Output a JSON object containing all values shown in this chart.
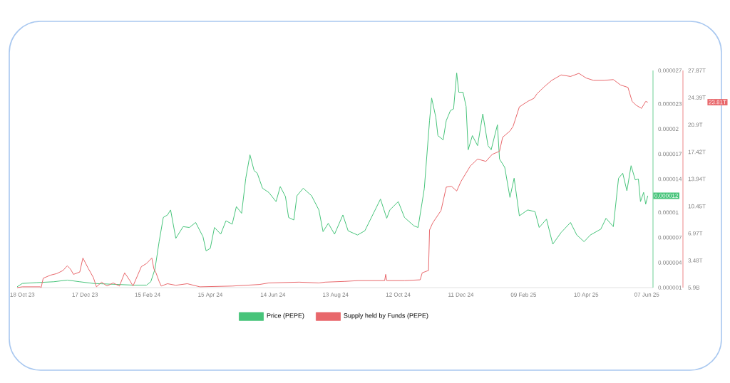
{
  "chart_data": {
    "type": "line",
    "xlim": [
      "2023-10-13",
      "2025-06-13"
    ],
    "xticks": [
      {
        "value": "2023-10-18",
        "label": "18 Oct 23"
      },
      {
        "value": "2023-12-17",
        "label": "17 Dec 23"
      },
      {
        "value": "2024-02-15",
        "label": "15 Feb 24"
      },
      {
        "value": "2024-04-15",
        "label": "15 Apr 24"
      },
      {
        "value": "2024-06-14",
        "label": "14 Jun 24"
      },
      {
        "value": "2024-08-13",
        "label": "13 Aug 24"
      },
      {
        "value": "2024-10-12",
        "label": "12 Oct 24"
      },
      {
        "value": "2024-12-11",
        "label": "11 Dec 24"
      },
      {
        "value": "2025-02-09",
        "label": "09 Feb 25"
      },
      {
        "value": "2025-04-10",
        "label": "10 Apr 25"
      },
      {
        "value": "2025-06-07",
        "label": "07 Jun 25"
      }
    ],
    "ylim": [
      1e-06,
      2.7e-05
    ],
    "yticks": [
      {
        "value": 1e-06,
        "label": "0.000001"
      },
      {
        "value": 4e-06,
        "label": "0.000004"
      },
      {
        "value": 7e-06,
        "label": "0.000007"
      },
      {
        "value": 1e-05,
        "label": "0.00001"
      },
      {
        "value": 1.4e-05,
        "label": "0.000014"
      },
      {
        "value": 1.7e-05,
        "label": "0.000017"
      },
      {
        "value": 2e-05,
        "label": "0.00002"
      },
      {
        "value": 2.3e-05,
        "label": "0.000023"
      },
      {
        "value": 2.7e-05,
        "label": "0.000027"
      }
    ],
    "y2lim": [
      0,
      27870000000000.0
    ],
    "y2ticks": [
      {
        "value": 5900000000.0,
        "label": "5.9B"
      },
      {
        "value": 3480000000000.0,
        "label": "3.48T"
      },
      {
        "value": 6970000000000.0,
        "label": "6.97T"
      },
      {
        "value": 10450000000000.0,
        "label": "10.45T"
      },
      {
        "value": 13940000000000.0,
        "label": "13.94T"
      },
      {
        "value": 17420000000000.0,
        "label": "17.42T"
      },
      {
        "value": 20900000000000.0,
        "label": "20.9T"
      },
      {
        "value": 24390000000000.0,
        "label": "24.39T"
      },
      {
        "value": 27870000000000.0,
        "label": "27.87T"
      }
    ],
    "legend": "bottom",
    "annotations": [
      "0.000012",
      "23.81T"
    ],
    "series": [
      {
        "name": "Price (PEPE)",
        "color": "#47c47a",
        "x": [
          "2023-10-13",
          "2023-10-18",
          "2023-11-01",
          "2023-11-17",
          "2023-11-30",
          "2023-12-12",
          "2023-12-25",
          "2024-01-13",
          "2024-02-01",
          "2024-02-14",
          "2024-02-18",
          "2024-02-22",
          "2024-02-26",
          "2024-03-01",
          "2024-03-05",
          "2024-03-08",
          "2024-03-13",
          "2024-03-20",
          "2024-03-26",
          "2024-04-01",
          "2024-04-08",
          "2024-04-11",
          "2024-04-15",
          "2024-04-19",
          "2024-04-25",
          "2024-04-30",
          "2024-05-06",
          "2024-05-10",
          "2024-05-15",
          "2024-05-19",
          "2024-05-23",
          "2024-05-27",
          "2024-05-30",
          "2024-06-04",
          "2024-06-10",
          "2024-06-17",
          "2024-06-21",
          "2024-06-26",
          "2024-06-29",
          "2024-07-04",
          "2024-07-07",
          "2024-07-13",
          "2024-07-21",
          "2024-07-28",
          "2024-08-01",
          "2024-08-06",
          "2024-08-12",
          "2024-08-20",
          "2024-08-25",
          "2024-09-03",
          "2024-09-10",
          "2024-09-25",
          "2024-10-01",
          "2024-10-04",
          "2024-10-12",
          "2024-10-18",
          "2024-10-27",
          "2024-10-31",
          "2024-11-04",
          "2024-11-06",
          "2024-11-11",
          "2024-11-13",
          "2024-11-17",
          "2024-11-19",
          "2024-11-24",
          "2024-11-27",
          "2024-12-01",
          "2024-12-04",
          "2024-12-07",
          "2024-12-09",
          "2024-12-13",
          "2024-12-16",
          "2024-12-18",
          "2024-12-22",
          "2024-12-27",
          "2025-01-01",
          "2025-01-06",
          "2025-01-09",
          "2025-01-15",
          "2025-01-17",
          "2025-01-22",
          "2025-01-27",
          "2025-01-31",
          "2025-02-05",
          "2025-02-13",
          "2025-02-20",
          "2025-02-24",
          "2025-03-03",
          "2025-03-09",
          "2025-03-17",
          "2025-03-26",
          "2025-04-01",
          "2025-04-08",
          "2025-04-14",
          "2025-04-24",
          "2025-04-29",
          "2025-05-06",
          "2025-05-11",
          "2025-05-15",
          "2025-05-19",
          "2025-05-23",
          "2025-05-27",
          "2025-05-30",
          "2025-06-01",
          "2025-06-04",
          "2025-06-06",
          "2025-06-08"
        ],
        "values": [
          1.1e-06,
          1.5e-06,
          1.6e-06,
          1.7e-06,
          1.9e-06,
          1.7e-06,
          1.5e-06,
          1.4e-06,
          1.3e-06,
          1.3e-06,
          1.7e-06,
          3.2e-06,
          6.5e-06,
          9.4e-06,
          9.7e-06,
          1.03e-05,
          6.9e-06,
          8.3e-06,
          8.2e-06,
          8.8e-06,
          7.1e-06,
          5.4e-06,
          5.7e-06,
          8.2e-06,
          7.4e-06,
          9e-06,
          8.6e-06,
          1.07e-05,
          9.9e-06,
          1.41e-05,
          1.69e-05,
          1.5e-05,
          1.47e-05,
          1.29e-05,
          1.24e-05,
          1.13e-05,
          1.31e-05,
          1.19e-05,
          9.4e-06,
          9.1e-06,
          1.2e-05,
          1.29e-05,
          1.2e-05,
          1.03e-05,
          7.7e-06,
          8.7e-06,
          7.4e-06,
          9.7e-06,
          7.8e-06,
          7.3e-06,
          7.8e-06,
          1.16e-05,
          9.3e-06,
          1.03e-05,
          1.13e-05,
          9.4e-06,
          8.4e-06,
          8.2e-06,
          1.13e-05,
          1.29e-05,
          2.1e-05,
          2.37e-05,
          2.14e-05,
          1.92e-05,
          1.87e-05,
          2.1e-05,
          2.22e-05,
          2.24e-05,
          2.67e-05,
          2.44e-05,
          2.44e-05,
          2.27e-05,
          1.75e-05,
          1.92e-05,
          1.8e-05,
          2.18e-05,
          1.8e-05,
          1.75e-05,
          2.05e-05,
          1.64e-05,
          1.54e-05,
          1.18e-05,
          1.41e-05,
          9.6e-06,
          1.03e-05,
          1.01e-05,
          8.2e-06,
          9.2e-06,
          6.2e-06,
          7.6e-06,
          8.8e-06,
          7.3e-06,
          6.5e-06,
          7.3e-06,
          8e-06,
          9.3e-06,
          8.3e-06,
          1.41e-05,
          1.47e-05,
          1.26e-05,
          1.56e-05,
          1.39e-05,
          1.4e-05,
          1.13e-05,
          1.24e-05,
          1.1e-05,
          1.2e-05
        ]
      },
      {
        "name": "Supply held by Funds (PEPE)",
        "color": "#e8676b",
        "axis": "y2",
        "x": [
          "2023-10-13",
          "2023-10-18",
          "2023-11-04",
          "2023-11-05",
          "2023-11-07",
          "2023-11-14",
          "2023-11-20",
          "2023-11-26",
          "2023-11-30",
          "2023-12-03",
          "2023-12-06",
          "2023-12-12",
          "2023-12-15",
          "2023-12-20",
          "2023-12-25",
          "2023-12-28",
          "2024-01-02",
          "2024-01-07",
          "2024-01-13",
          "2024-01-19",
          "2024-01-24",
          "2024-01-29",
          "2024-02-01",
          "2024-02-09",
          "2024-02-14",
          "2024-02-19",
          "2024-02-21",
          "2024-02-23",
          "2024-02-26",
          "2024-02-28",
          "2024-03-05",
          "2024-03-13",
          "2024-03-24",
          "2024-04-05",
          "2024-05-06",
          "2024-06-01",
          "2024-06-10",
          "2024-07-09",
          "2024-07-28",
          "2024-08-03",
          "2024-08-22",
          "2024-09-04",
          "2024-09-29",
          "2024-09-30",
          "2024-10-01",
          "2024-10-18",
          "2024-11-02",
          "2024-11-04",
          "2024-11-10",
          "2024-11-11",
          "2024-11-14",
          "2024-11-22",
          "2024-11-27",
          "2024-12-02",
          "2024-12-07",
          "2024-12-11",
          "2024-12-20",
          "2024-12-27",
          "2025-01-04",
          "2025-01-10",
          "2025-01-17",
          "2025-01-20",
          "2025-01-27",
          "2025-01-30",
          "2025-02-05",
          "2025-02-13",
          "2025-02-19",
          "2025-02-22",
          "2025-03-01",
          "2025-03-08",
          "2025-03-17",
          "2025-03-26",
          "2025-04-03",
          "2025-04-10",
          "2025-04-17",
          "2025-04-27",
          "2025-05-06",
          "2025-05-13",
          "2025-05-20",
          "2025-05-24",
          "2025-05-28",
          "2025-06-02",
          "2025-06-06",
          "2025-06-08"
        ],
        "values": [
          0,
          100000000000.0,
          100000000000.0,
          0,
          1200000000000.0,
          1600000000000.0,
          1800000000000.0,
          2200000000000.0,
          2800000000000.0,
          2400000000000.0,
          1700000000000.0,
          2000000000000.0,
          3800000000000.0,
          2500000000000.0,
          1300000000000.0,
          100000000000.0,
          700000000000.0,
          200000000000.0,
          600000000000.0,
          200000000000.0,
          1900000000000.0,
          900000000000.0,
          200000000000.0,
          2700000000000.0,
          3100000000000.0,
          3800000000000.0,
          2400000000000.0,
          1900000000000.0,
          800000000000.0,
          200000000000.0,
          500000000000.0,
          300000000000.0,
          500000000000.0,
          100000000000.0,
          200000000000.0,
          400000000000.0,
          600000000000.0,
          700000000000.0,
          600000000000.0,
          700000000000.0,
          800000000000.0,
          900000000000.0,
          900000000000.0,
          1700000000000.0,
          900000000000.0,
          900000000000.0,
          1000000000000.0,
          1900000000000.0,
          2200000000000.0,
          7400000000000.0,
          8300000000000.0,
          9900000000000.0,
          12900000000000.0,
          13000000000000.0,
          12400000000000.0,
          13600000000000.0,
          15600000000000.0,
          16500000000000.0,
          16200000000000.0,
          17100000000000.0,
          17500000000000.0,
          19300000000000.0,
          20100000000000.0,
          20700000000000.0,
          23200000000000.0,
          23900000000000.0,
          24300000000000.0,
          24900000000000.0,
          25800000000000.0,
          26600000000000.0,
          27300000000000.0,
          27100000000000.0,
          27500000000000.0,
          26900000000000.0,
          26600000000000.0,
          26600000000000.0,
          26700000000000.0,
          26000000000000.0,
          25700000000000.0,
          23900000000000.0,
          23400000000000.0,
          23000000000000.0,
          23900000000000.0,
          23800000000000.0
        ]
      }
    ]
  }
}
